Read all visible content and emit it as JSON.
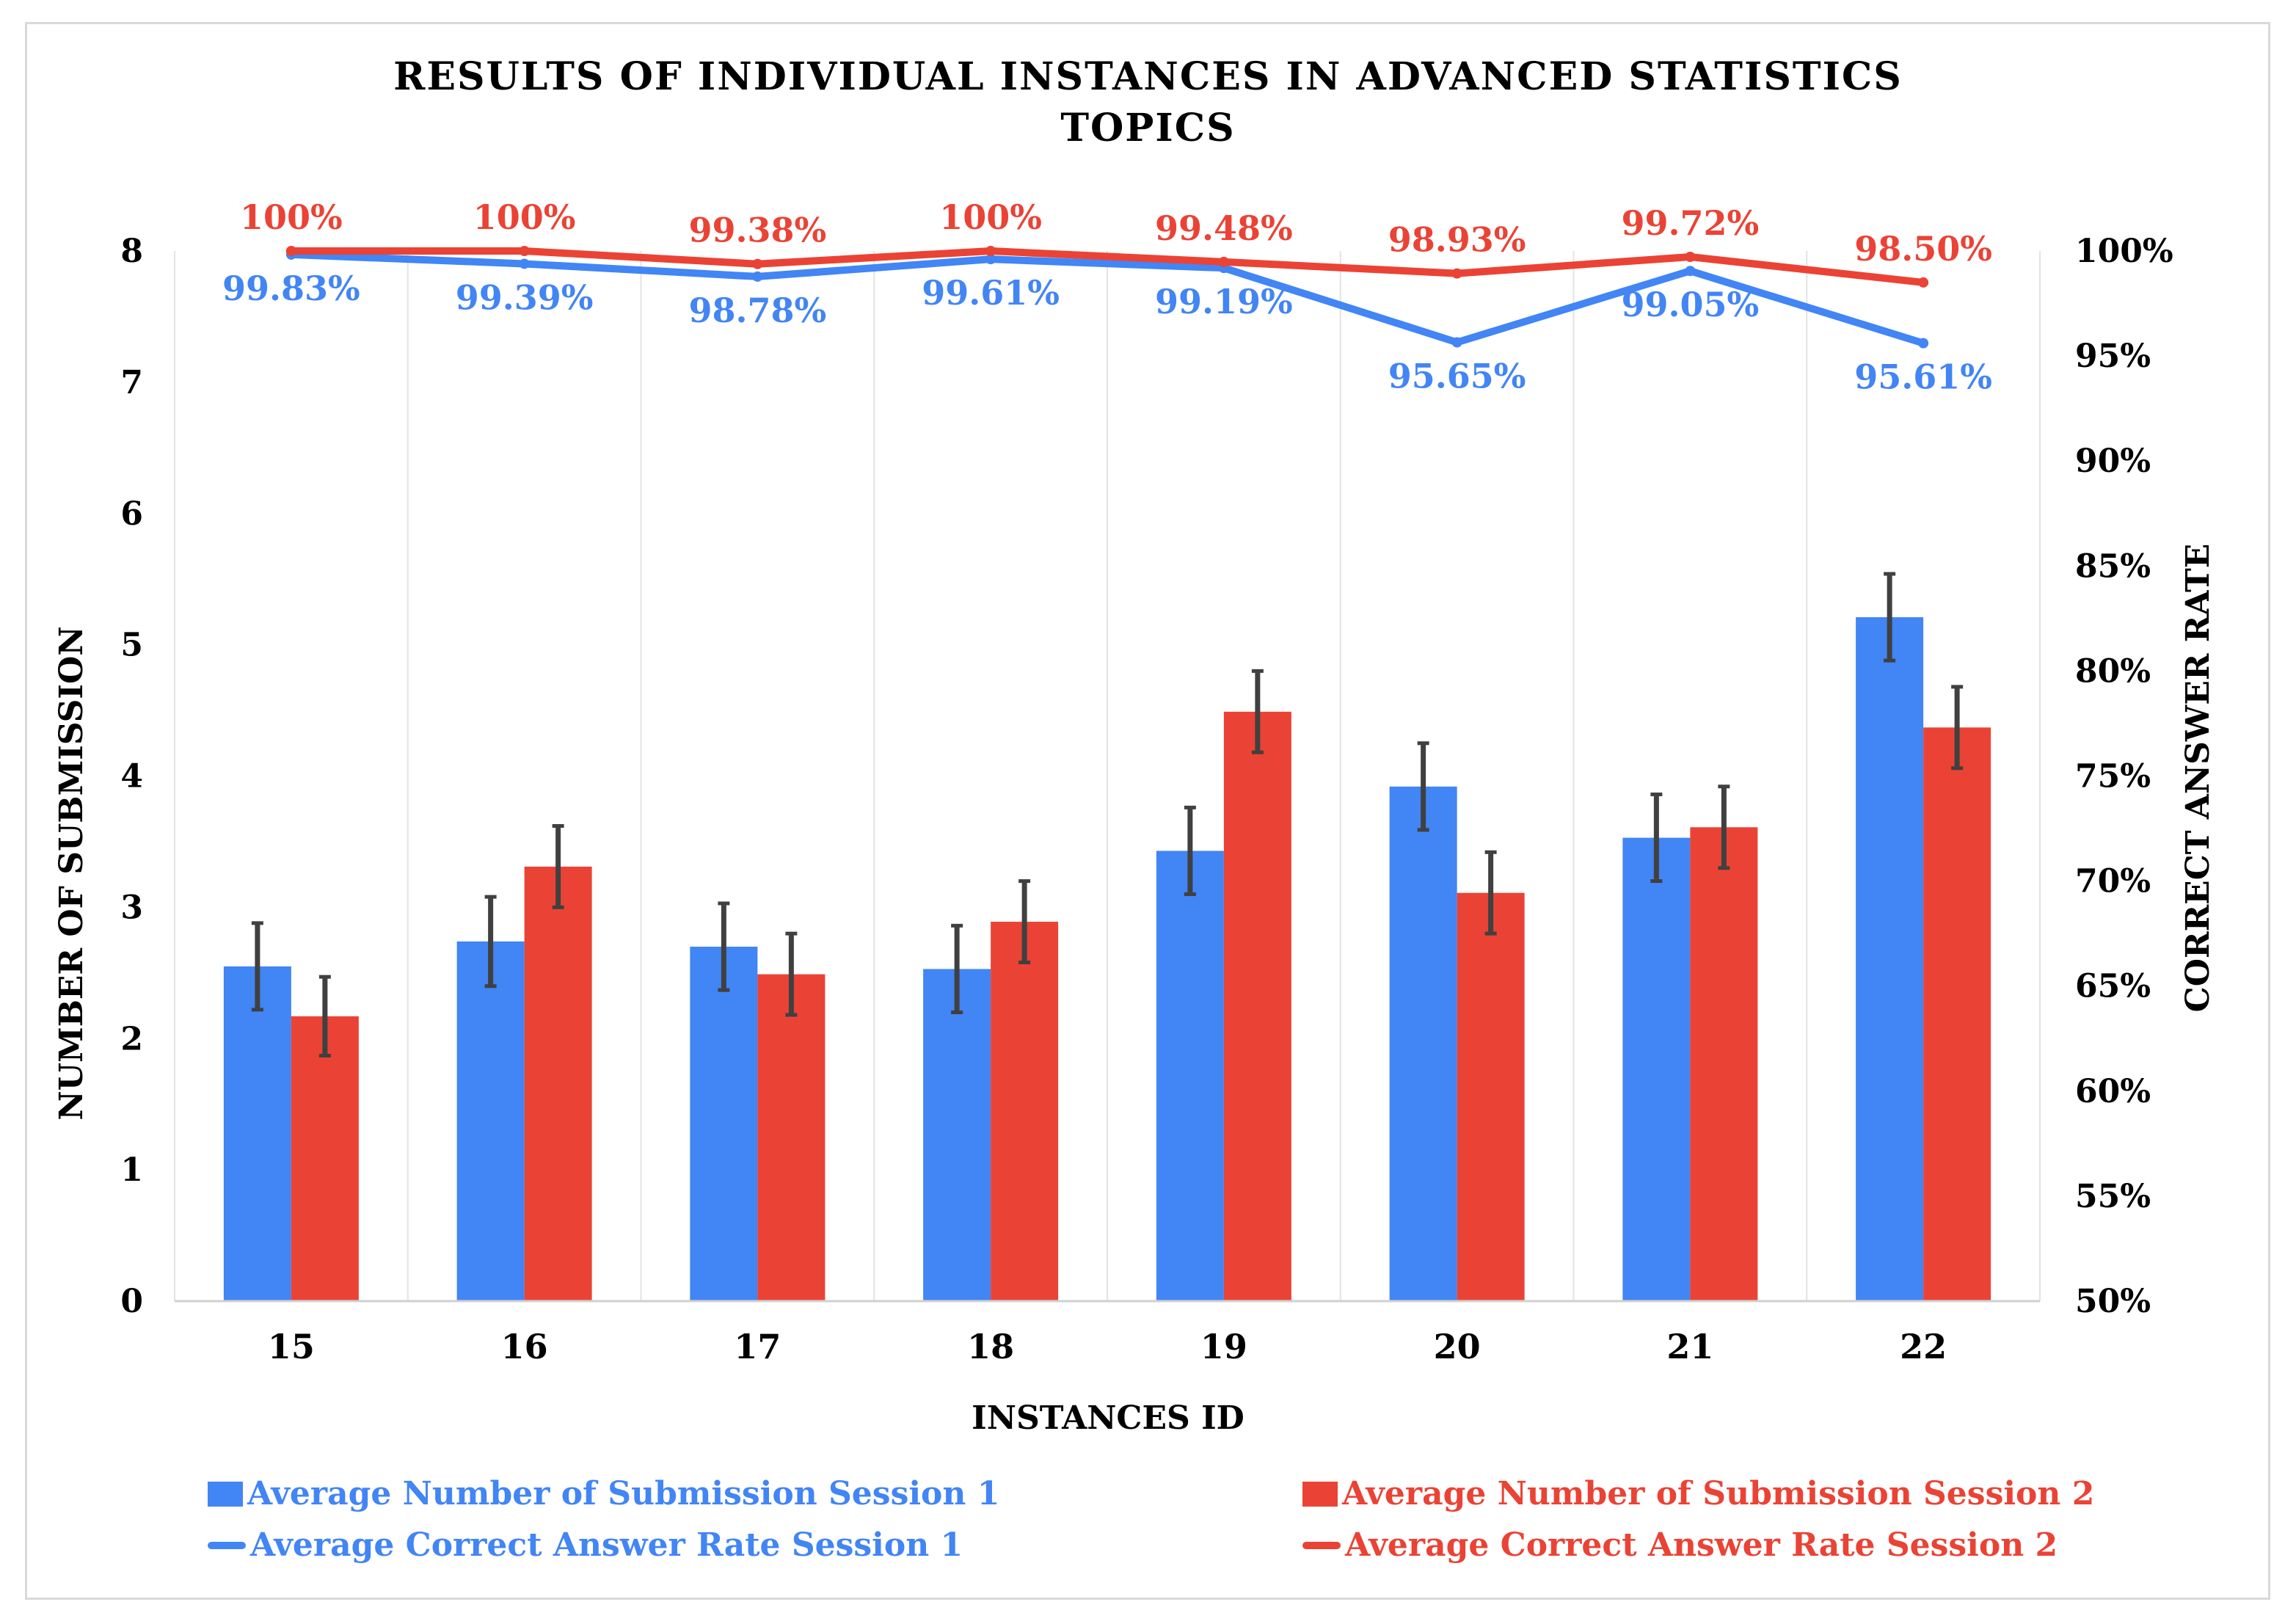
{
  "colors": {
    "session1": "#4285F4",
    "session2": "#EA4335",
    "grid": "#e3e3e3",
    "error_bar": "#404040",
    "axis_text": "#000000"
  },
  "chart_data": {
    "type": "bar",
    "title_line1": "RESULTS OF INDIVIDUAL INSTANCES IN ADVANCED STATISTICS",
    "title_line2": "TOPICS",
    "xlabel": "INSTANCES ID",
    "ylabel": "NUMBER OF SUBMISSION",
    "y2label": "CORRECT ANSWER RATE",
    "categories": [
      "15",
      "16",
      "17",
      "18",
      "19",
      "20",
      "21",
      "22"
    ],
    "ylim": [
      0,
      8
    ],
    "y_ticks": [
      "0",
      "1",
      "2",
      "3",
      "4",
      "5",
      "6",
      "7",
      "8"
    ],
    "y2lim": [
      50,
      100
    ],
    "y2_ticks": [
      "50%",
      "55%",
      "60%",
      "65%",
      "70%",
      "75%",
      "80%",
      "85%",
      "90%",
      "95%",
      "100%"
    ],
    "bar_series": [
      {
        "name": "Average Number of Submission Session 1",
        "color": "#4285F4",
        "values": [
          2.55,
          2.74,
          2.7,
          2.53,
          3.43,
          3.92,
          3.53,
          5.21
        ],
        "errors": [
          0.33,
          0.34,
          0.33,
          0.33,
          0.33,
          0.33,
          0.33,
          0.33
        ]
      },
      {
        "name": "Average Number of Submission Session 2",
        "color": "#EA4335",
        "values": [
          2.17,
          3.31,
          2.49,
          2.89,
          4.49,
          3.11,
          3.61,
          4.37
        ],
        "errors": [
          0.3,
          0.31,
          0.31,
          0.31,
          0.31,
          0.31,
          0.31,
          0.31
        ]
      }
    ],
    "line_series": [
      {
        "name": "Average Correct Answer Rate Session 1",
        "color": "#4285F4",
        "values": [
          99.83,
          99.39,
          98.78,
          99.61,
          99.19,
          95.65,
          99.05,
          95.61
        ],
        "labels": [
          "99.83%",
          "99.39%",
          "98.78%",
          "99.61%",
          "99.19%",
          "95.65%",
          "99.05%",
          "95.61%"
        ]
      },
      {
        "name": "Average Correct Answer Rate Session 2",
        "color": "#EA4335",
        "values": [
          100,
          100,
          99.38,
          100,
          99.48,
          98.93,
          99.72,
          98.5
        ],
        "labels": [
          "100%",
          "100%",
          "99.38%",
          "100%",
          "99.48%",
          "98.93%",
          "99.72%",
          "98.50%"
        ]
      }
    ],
    "legend_position": "bottom"
  }
}
